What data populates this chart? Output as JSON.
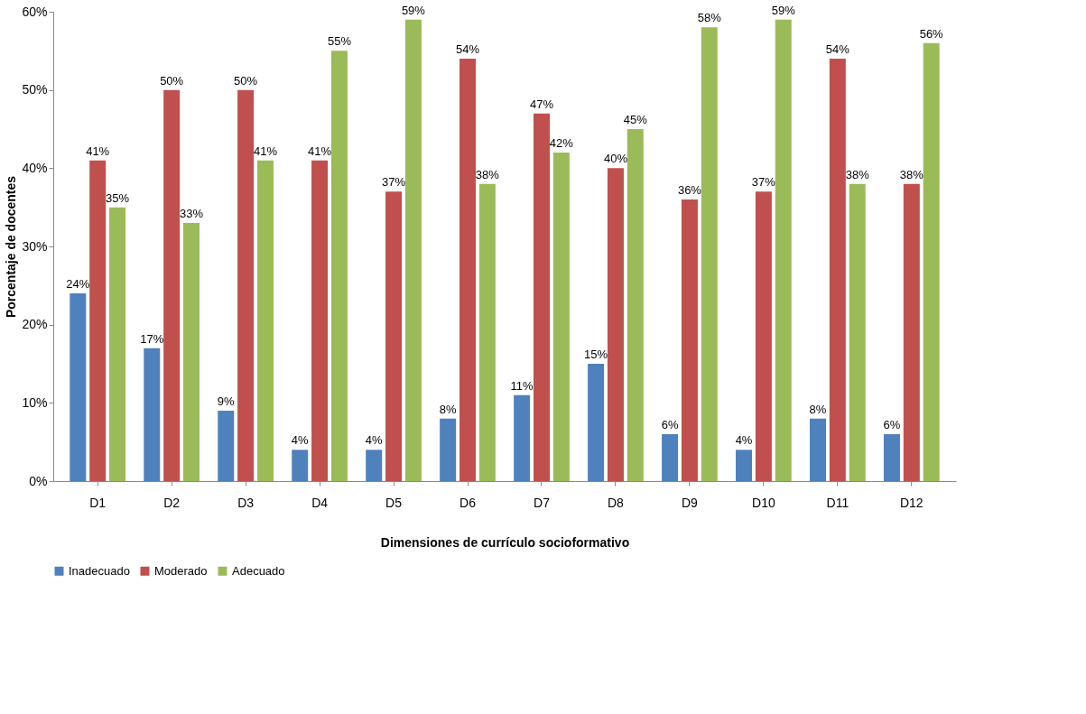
{
  "chart_data": {
    "type": "bar",
    "xlabel": "Dimensiones de currículo socioformativo",
    "ylabel": "Porcentaje de docentes",
    "categories": [
      "D1",
      "D2",
      "D3",
      "D4",
      "D5",
      "D6",
      "D7",
      "D8",
      "D9",
      "D10",
      "D11",
      "D12"
    ],
    "series": [
      {
        "name": "Inadecuado",
        "color": "#4f81bd",
        "values": [
          24,
          17,
          9,
          4,
          4,
          8,
          11,
          15,
          6,
          4,
          8,
          6
        ],
        "value_labels": [
          "24%",
          "17%",
          "9%",
          "4%",
          "4%",
          "8%",
          "11%",
          "15%",
          "6%",
          "4%",
          "8%",
          "6%"
        ]
      },
      {
        "name": "Moderado",
        "color": "#c0504d",
        "values": [
          41,
          50,
          50,
          41,
          37,
          54,
          47,
          40,
          36,
          37,
          54,
          38
        ],
        "value_labels": [
          "41%",
          "50%",
          "50%",
          "41%",
          "37%",
          "54%",
          "47%",
          "40%",
          "36%",
          "37%",
          "54%",
          "38%"
        ]
      },
      {
        "name": "Adecuado",
        "color": "#9bbb59",
        "values": [
          35,
          33,
          41,
          55,
          59,
          38,
          42,
          45,
          58,
          59,
          38,
          56
        ],
        "value_labels": [
          "35%",
          "33%",
          "41%",
          "55%",
          "59%",
          "38%",
          "42%",
          "45%",
          "58%",
          "59%",
          "38%",
          "56%"
        ]
      }
    ],
    "ylim": [
      0,
      60
    ],
    "yticks": [
      {
        "value": 0,
        "label": "0%"
      },
      {
        "value": 10,
        "label": "10%"
      },
      {
        "value": 20,
        "label": "20%"
      },
      {
        "value": 30,
        "label": "30%"
      },
      {
        "value": 40,
        "label": "40%"
      },
      {
        "value": 50,
        "label": "50%"
      },
      {
        "value": 60,
        "label": "60%"
      }
    ],
    "grid": false,
    "legend": "bottom"
  }
}
